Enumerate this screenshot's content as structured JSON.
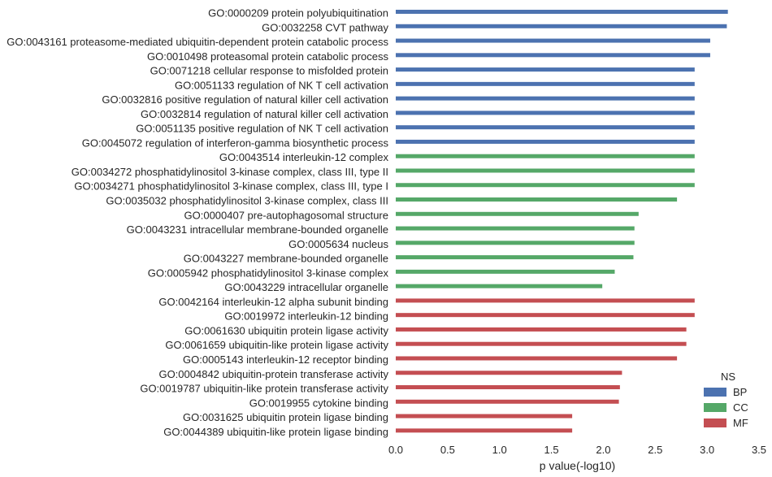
{
  "chart_data": {
    "type": "bar",
    "orientation": "horizontal",
    "categories": [
      "GO:0000209 protein polyubiquitination",
      "GO:0032258 CVT pathway",
      "GO:0043161 proteasome-mediated ubiquitin-dependent protein catabolic process",
      "GO:0010498 proteasomal protein catabolic process",
      "GO:0071218 cellular response to misfolded protein",
      "GO:0051133 regulation of NK T cell activation",
      "GO:0032816 positive regulation of natural killer cell activation",
      "GO:0032814 regulation of natural killer cell activation",
      "GO:0051135 positive regulation of NK T cell activation",
      "GO:0045072 regulation of interferon-gamma biosynthetic process",
      "GO:0043514 interleukin-12 complex",
      "GO:0034272 phosphatidylinositol 3-kinase complex, class III, type II",
      "GO:0034271 phosphatidylinositol 3-kinase complex, class III, type I",
      "GO:0035032 phosphatidylinositol 3-kinase complex, class III",
      "GO:0000407 pre-autophagosomal structure",
      "GO:0043231 intracellular membrane-bounded organelle",
      "GO:0005634 nucleus",
      "GO:0043227 membrane-bounded organelle",
      "GO:0005942 phosphatidylinositol 3-kinase complex",
      "GO:0043229 intracellular organelle",
      "GO:0042164 interleukin-12 alpha subunit binding",
      "GO:0019972 interleukin-12 binding",
      "GO:0061630 ubiquitin protein ligase activity",
      "GO:0061659 ubiquitin-like protein ligase activity",
      "GO:0005143 interleukin-12 receptor binding",
      "GO:0004842 ubiquitin-protein transferase activity",
      "GO:0019787 ubiquitin-like protein transferase activity",
      "GO:0019955 cytokine binding",
      "GO:0031625 ubiquitin protein ligase binding",
      "GO:0044389 ubiquitin-like protein ligase binding"
    ],
    "values": [
      3.2,
      3.19,
      3.03,
      3.03,
      2.88,
      2.88,
      2.88,
      2.88,
      2.88,
      2.88,
      2.88,
      2.88,
      2.88,
      2.71,
      2.34,
      2.3,
      2.3,
      2.29,
      2.11,
      1.99,
      2.88,
      2.88,
      2.8,
      2.8,
      2.71,
      2.18,
      2.16,
      2.15,
      1.7,
      1.7
    ],
    "groups": [
      "BP",
      "BP",
      "BP",
      "BP",
      "BP",
      "BP",
      "BP",
      "BP",
      "BP",
      "BP",
      "CC",
      "CC",
      "CC",
      "CC",
      "CC",
      "CC",
      "CC",
      "CC",
      "CC",
      "CC",
      "MF",
      "MF",
      "MF",
      "MF",
      "MF",
      "MF",
      "MF",
      "MF",
      "MF",
      "MF"
    ],
    "series": [
      {
        "name": "BP",
        "color": "#4c72b0"
      },
      {
        "name": "CC",
        "color": "#55a868"
      },
      {
        "name": "MF",
        "color": "#c44e52"
      }
    ],
    "xlabel": "p value(-log10)",
    "ylabel": "",
    "xlim": [
      0,
      3.5
    ],
    "xticks": [
      "0.0",
      "0.5",
      "1.0",
      "1.5",
      "2.0",
      "2.5",
      "3.0",
      "3.5"
    ],
    "grid": false,
    "legend": {
      "title": "NS",
      "position": "bottom-right"
    }
  }
}
